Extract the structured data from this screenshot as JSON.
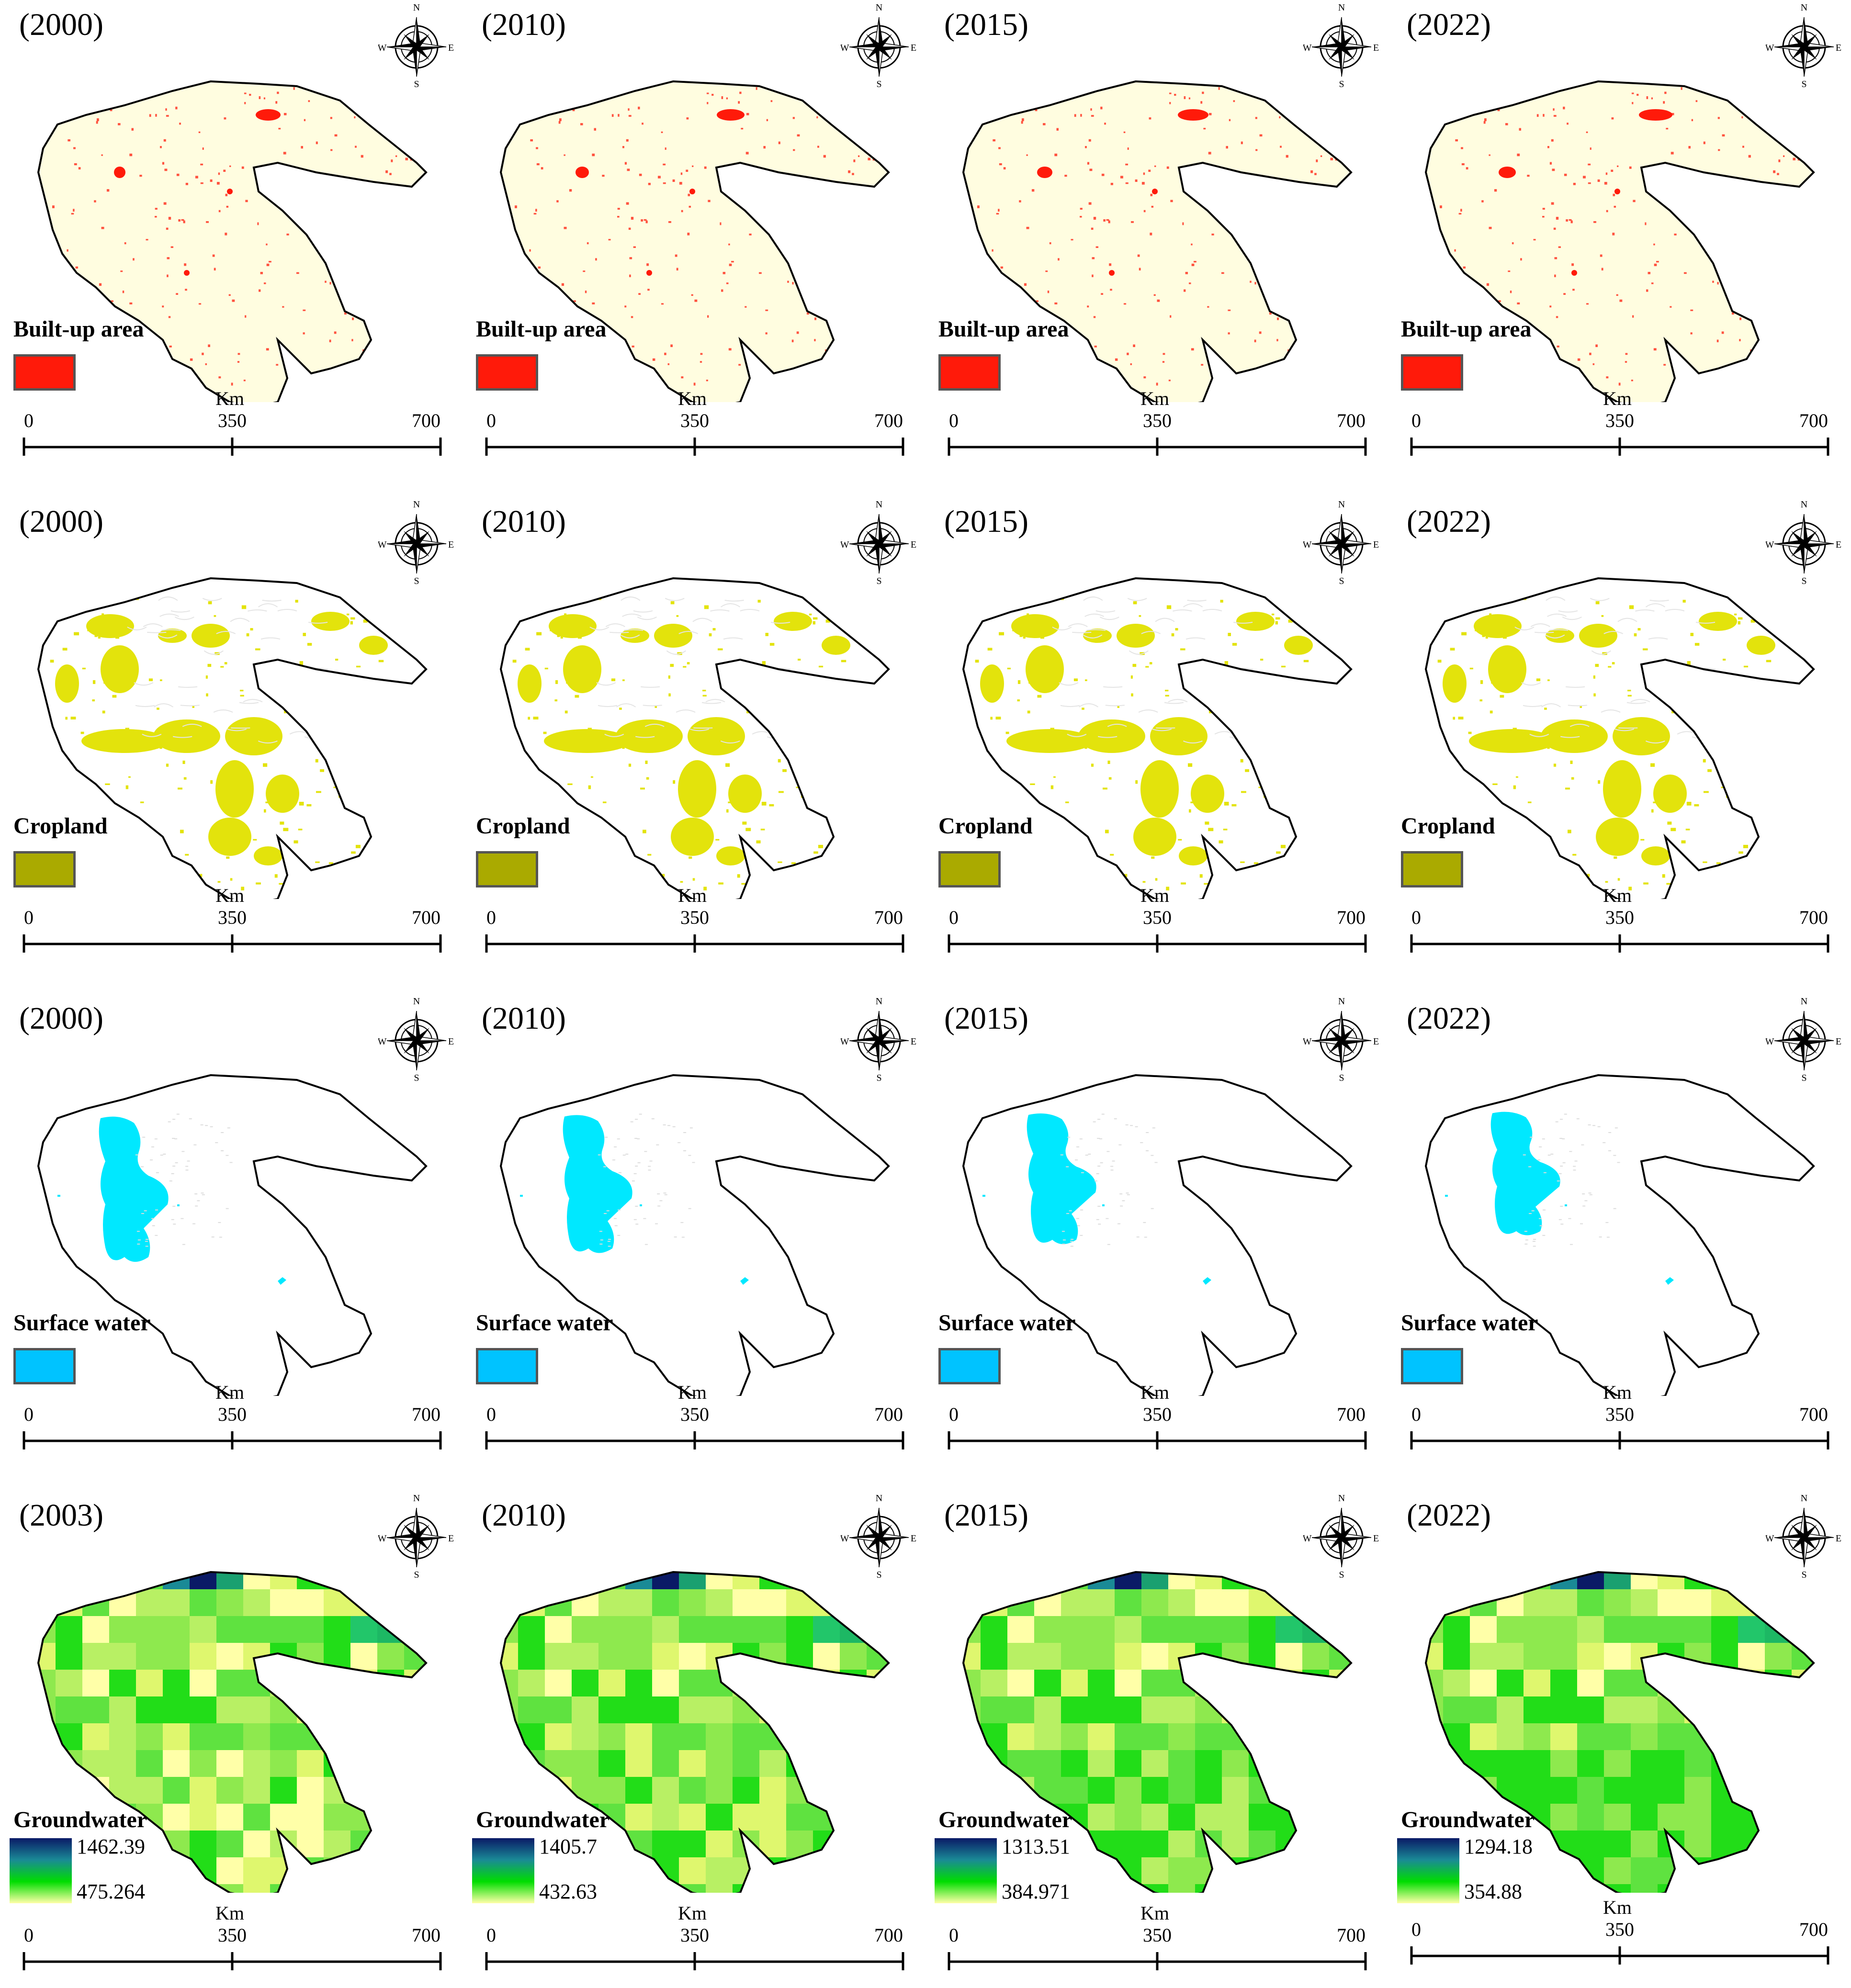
{
  "scale_bar": {
    "unit": "Km",
    "ticks": [
      "0",
      "350",
      "700"
    ]
  },
  "compass": {
    "n": "N",
    "s": "S",
    "e": "E",
    "w": "W"
  },
  "colors": {
    "builtup": "#ff1a0a",
    "cropland": "#aaaa00",
    "cropland_map": "#e3e30c",
    "water": "#00c3ff",
    "water_map": "#00e8ff",
    "basin_fill_builtup": "#fffde0"
  },
  "rows": [
    {
      "layer": "Built-up area",
      "type": "swatch",
      "swatch_color": "#ff1a0a",
      "panels": [
        {
          "year": "(2000)"
        },
        {
          "year": "(2010)"
        },
        {
          "year": "(2015)"
        },
        {
          "year": "(2022)"
        }
      ]
    },
    {
      "layer": "Cropland",
      "type": "swatch",
      "swatch_color": "#aaaa00",
      "panels": [
        {
          "year": "(2000)"
        },
        {
          "year": "(2010)"
        },
        {
          "year": "(2015)"
        },
        {
          "year": "(2022)"
        }
      ]
    },
    {
      "layer": "Surface water",
      "type": "swatch",
      "swatch_color": "#00c3ff",
      "panels": [
        {
          "year": "(2000)"
        },
        {
          "year": "(2010)"
        },
        {
          "year": "(2015)"
        },
        {
          "year": "(2022)"
        }
      ]
    },
    {
      "layer": "Groundwater",
      "type": "ramp",
      "ramp_colors": [
        "#0a1a66",
        "#1a8a96",
        "#00dd00",
        "#ffffa8"
      ],
      "panels": [
        {
          "year": "(2003)",
          "max": "1462.39",
          "min": "475.264"
        },
        {
          "year": "(2010)",
          "max": "1405.7",
          "min": "432.63"
        },
        {
          "year": "(2015)",
          "max": "1313.51",
          "min": "384.971"
        },
        {
          "year": "(2022)",
          "max": "1294.18",
          "min": "354.88"
        }
      ]
    }
  ]
}
